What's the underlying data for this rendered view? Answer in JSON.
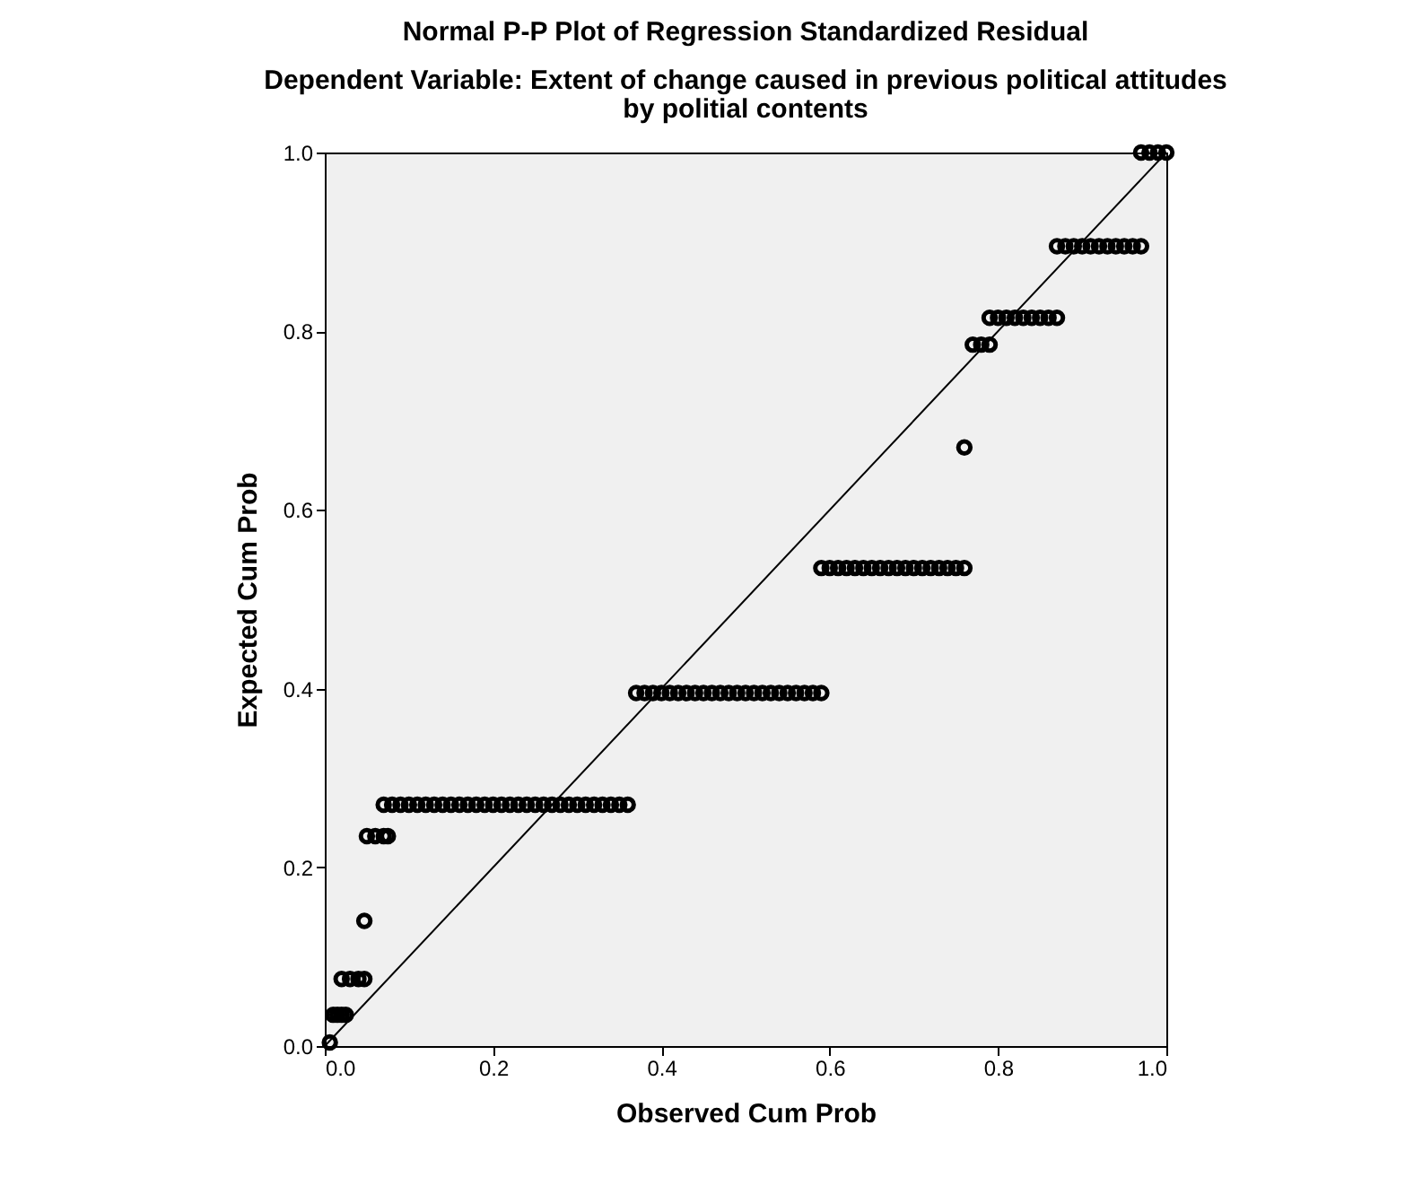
{
  "chart_data": {
    "type": "scatter",
    "title": "Normal P-P Plot of Regression Standardized Residual",
    "subtitle": "Dependent Variable: Extent of change caused in previous political attitudes by politial contents",
    "xlabel": "Observed Cum Prob",
    "ylabel": "Expected Cum Prob",
    "xlim": [
      0,
      1
    ],
    "ylim": [
      0,
      1
    ],
    "xticks": [
      {
        "value": 0,
        "label": "0.0"
      },
      0.2,
      0.4,
      0.6,
      0.8,
      {
        "value": 1,
        "label": "1.0"
      }
    ],
    "yticks": [
      {
        "value": 0,
        "label": "0.0"
      },
      0.2,
      0.4,
      0.6,
      0.8,
      {
        "value": 1,
        "label": "1.0"
      }
    ],
    "grid": false,
    "marker": "circle",
    "series": [
      {
        "color": "#000000",
        "x": [
          0.006,
          0.01,
          0.015,
          0.02,
          0.025,
          0.02,
          0.03,
          0.04,
          0.047,
          0.047,
          0.05,
          0.06,
          0.07,
          0.075,
          0.07,
          0.08,
          0.09,
          0.1,
          0.11,
          0.12,
          0.13,
          0.14,
          0.15,
          0.16,
          0.17,
          0.18,
          0.19,
          0.2,
          0.21,
          0.22,
          0.23,
          0.24,
          0.25,
          0.26,
          0.27,
          0.28,
          0.29,
          0.3,
          0.31,
          0.32,
          0.33,
          0.34,
          0.35,
          0.36,
          0.37,
          0.38,
          0.39,
          0.4,
          0.41,
          0.42,
          0.43,
          0.44,
          0.45,
          0.46,
          0.47,
          0.48,
          0.49,
          0.5,
          0.51,
          0.52,
          0.53,
          0.54,
          0.55,
          0.56,
          0.57,
          0.58,
          0.59,
          0.59,
          0.6,
          0.61,
          0.62,
          0.63,
          0.64,
          0.65,
          0.66,
          0.67,
          0.68,
          0.69,
          0.7,
          0.71,
          0.72,
          0.73,
          0.74,
          0.75,
          0.76,
          0.76,
          0.77,
          0.78,
          0.79,
          0.79,
          0.8,
          0.81,
          0.82,
          0.83,
          0.84,
          0.85,
          0.86,
          0.87,
          0.87,
          0.88,
          0.89,
          0.9,
          0.91,
          0.92,
          0.93,
          0.94,
          0.95,
          0.96,
          0.97,
          0.97,
          0.98,
          0.99,
          1.0
        ],
        "values": [
          0.004,
          0.035,
          0.035,
          0.035,
          0.035,
          0.075,
          0.075,
          0.075,
          0.075,
          0.14,
          0.235,
          0.235,
          0.235,
          0.235,
          0.27,
          0.27,
          0.27,
          0.27,
          0.27,
          0.27,
          0.27,
          0.27,
          0.27,
          0.27,
          0.27,
          0.27,
          0.27,
          0.27,
          0.27,
          0.27,
          0.27,
          0.27,
          0.27,
          0.27,
          0.27,
          0.27,
          0.27,
          0.27,
          0.27,
          0.27,
          0.27,
          0.27,
          0.27,
          0.27,
          0.395,
          0.395,
          0.395,
          0.395,
          0.395,
          0.395,
          0.395,
          0.395,
          0.395,
          0.395,
          0.395,
          0.395,
          0.395,
          0.395,
          0.395,
          0.395,
          0.395,
          0.395,
          0.395,
          0.395,
          0.395,
          0.395,
          0.395,
          0.535,
          0.535,
          0.535,
          0.535,
          0.535,
          0.535,
          0.535,
          0.535,
          0.535,
          0.535,
          0.535,
          0.535,
          0.535,
          0.535,
          0.535,
          0.535,
          0.535,
          0.535,
          0.67,
          0.785,
          0.785,
          0.785,
          0.815,
          0.815,
          0.815,
          0.815,
          0.815,
          0.815,
          0.815,
          0.815,
          0.815,
          0.895,
          0.895,
          0.895,
          0.895,
          0.895,
          0.895,
          0.895,
          0.895,
          0.895,
          0.895,
          0.895,
          1.0,
          1.0,
          1.0,
          1.0
        ]
      },
      {
        "type": "line",
        "color": "#000000",
        "line_style": "solid",
        "marker": "none",
        "x": [
          0,
          1
        ],
        "values": [
          0,
          1
        ]
      }
    ]
  }
}
